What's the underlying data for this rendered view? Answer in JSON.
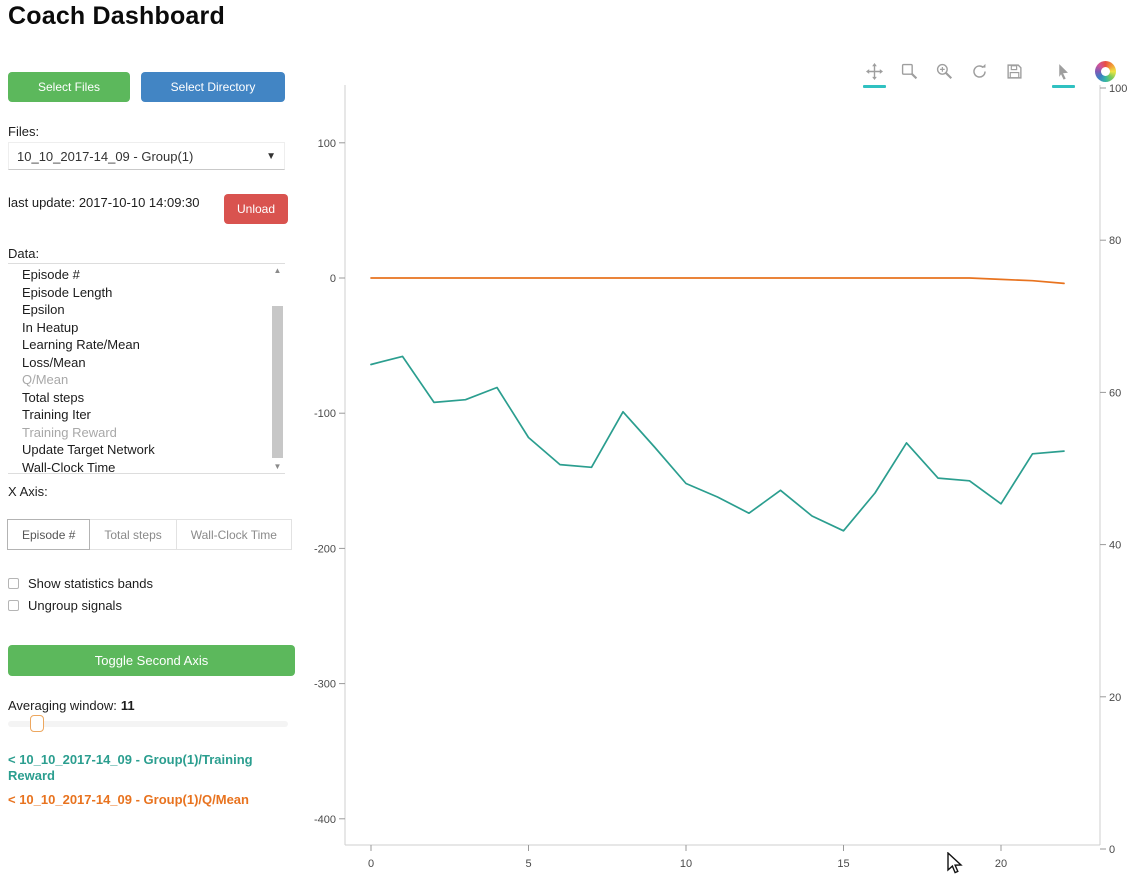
{
  "header": {
    "title": "Coach Dashboard"
  },
  "sidebar": {
    "select_files_label": "Select Files",
    "select_directory_label": "Select Directory",
    "files_label": "Files:",
    "files_value": "10_10_2017-14_09 - Group(1)",
    "last_update": "last update: 2017-10-10 14:09:30",
    "unload_label": "Unload",
    "data_label": "Data:",
    "data_items": [
      {
        "label": "Episode #",
        "dim": false
      },
      {
        "label": "Episode Length",
        "dim": false
      },
      {
        "label": "Epsilon",
        "dim": false
      },
      {
        "label": "In Heatup",
        "dim": false
      },
      {
        "label": "Learning Rate/Mean",
        "dim": false
      },
      {
        "label": "Loss/Mean",
        "dim": false
      },
      {
        "label": "Q/Mean",
        "dim": true
      },
      {
        "label": "Total steps",
        "dim": false
      },
      {
        "label": "Training Iter",
        "dim": false
      },
      {
        "label": "Training Reward",
        "dim": true
      },
      {
        "label": "Update Target Network",
        "dim": false
      },
      {
        "label": "Wall-Clock Time",
        "dim": false
      }
    ],
    "x_axis_label": "X Axis:",
    "x_axis_options": [
      "Episode #",
      "Total steps",
      "Wall-Clock Time"
    ],
    "x_axis_active": "Episode #",
    "checkboxes": [
      "Show statistics bands",
      "Ungroup signals"
    ],
    "toggle_second_axis_label": "Toggle Second Axis",
    "averaging_label": "Averaging window:",
    "averaging_value": "11",
    "legend": [
      {
        "label": "< 10_10_2017-14_09 - Group(1)/Training Reward",
        "color": "#2b9e8f"
      },
      {
        "label": "< 10_10_2017-14_09 - Group(1)/Q/Mean",
        "color": "#e8731f"
      }
    ]
  },
  "toolbar": {
    "tools": [
      {
        "name": "pan",
        "active": true
      },
      {
        "name": "box-zoom",
        "active": false
      },
      {
        "name": "wheel-zoom",
        "active": false
      },
      {
        "name": "reset",
        "active": false
      },
      {
        "name": "save",
        "active": false
      },
      {
        "name": "hover",
        "active": true,
        "gap_before": true
      }
    ],
    "logo": "bokeh-logo",
    "active_underline_color": "#30c1c1"
  },
  "colors": {
    "green_button": "#5cb85c",
    "blue_button": "#4285c4",
    "red_button": "#d9534f",
    "teal_series": "#2b9e8f",
    "orange_series": "#e8731f"
  },
  "chart_data": {
    "type": "line",
    "title": "",
    "xlabel": "",
    "ylabel": "",
    "grid": false,
    "legend_position": "left-sidebar",
    "x": [
      0,
      1,
      2,
      3,
      4,
      5,
      6,
      7,
      8,
      9,
      10,
      11,
      12,
      13,
      14,
      15,
      16,
      17,
      18,
      19,
      20,
      21,
      22
    ],
    "series": [
      {
        "name": "10_10_2017-14_09 - Group(1)/Training Reward",
        "color": "#2b9e8f",
        "axis": "left",
        "values": [
          -64,
          -58,
          -92,
          -90,
          -81,
          -118,
          -138,
          -140,
          -99,
          -125,
          -152,
          -162,
          -174,
          -157,
          -176,
          -187,
          -159,
          -122,
          -148,
          -150,
          -167,
          -130,
          -128
        ]
      },
      {
        "name": "10_10_2017-14_09 - Group(1)/Q/Mean",
        "color": "#e8731f",
        "axis": "left",
        "values": [
          0,
          0,
          0,
          0,
          0,
          0,
          0,
          0,
          0,
          0,
          0,
          0,
          0,
          0,
          0,
          0,
          0,
          0,
          0,
          0,
          -1,
          -2,
          -4
        ]
      }
    ],
    "x_ticks": [
      0,
      5,
      10,
      15,
      20
    ],
    "left_y_ticks": [
      100,
      0,
      -100,
      -200,
      -300,
      -400
    ],
    "right_y_ticks": [
      100,
      80,
      60,
      40,
      20,
      0
    ],
    "x_range": [
      -0.8,
      23.1
    ],
    "left_y_range": [
      -420,
      143
    ],
    "right_y_range": [
      0,
      100
    ]
  }
}
